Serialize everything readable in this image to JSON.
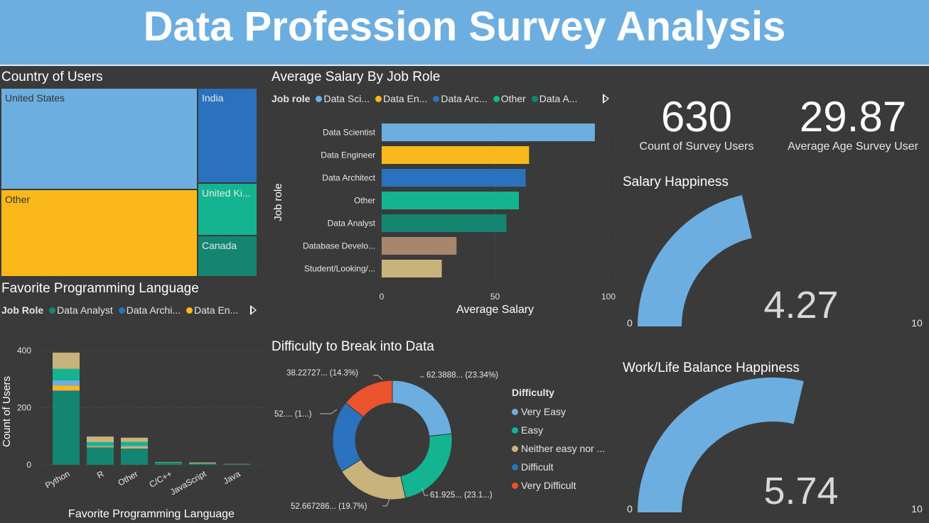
{
  "title": "Data Profession Survey Analysis",
  "colors": {
    "background": "#3a3a3a",
    "header": "#6caee0",
    "light_blue": "#6caee0",
    "yellow": "#fbb81b",
    "blue": "#2a72bd",
    "teal": "#14b391",
    "dark_teal": "#138571",
    "tan": "#a6876b",
    "khaki": "#c8b37d",
    "orange_red": "#ea532d"
  },
  "country_treemap": {
    "title": "Country of Users",
    "cells": [
      {
        "label": "United States",
        "color": "#6caee0"
      },
      {
        "label": "Other",
        "color": "#fbb81b"
      },
      {
        "label": "India",
        "color": "#2a72bd"
      },
      {
        "label": "United Ki...",
        "color": "#14b391"
      },
      {
        "label": "Canada",
        "color": "#138571"
      }
    ]
  },
  "salary_panel": {
    "title": "Average Salary By Job Role",
    "legend_title": "Job role",
    "legend_items": [
      {
        "label": "Data Sci...",
        "color": "#6caee0"
      },
      {
        "label": "Data En...",
        "color": "#fbb81b"
      },
      {
        "label": "Data Arc...",
        "color": "#2a72bd"
      },
      {
        "label": "Other",
        "color": "#14b391"
      },
      {
        "label": "Data A...",
        "color": "#138571"
      }
    ]
  },
  "language_panel": {
    "title": "Favorite Programming Language",
    "legend_title": "Job Role",
    "legend_items": [
      {
        "label": "Data Analyst",
        "color": "#138571"
      },
      {
        "label": "Data Archi...",
        "color": "#2a72bd"
      },
      {
        "label": "Data En...",
        "color": "#fbb81b"
      }
    ]
  },
  "difficulty_panel": {
    "title": "Difficulty to Break into Data",
    "legend_title": "Difficulty",
    "legend_items": [
      {
        "label": "Very Easy",
        "color": "#6caee0"
      },
      {
        "label": "Easy",
        "color": "#14b391"
      },
      {
        "label": "Neither easy nor ...",
        "color": "#c8b37d"
      },
      {
        "label": "Difficult",
        "color": "#2a72bd"
      },
      {
        "label": "Very Difficult",
        "color": "#ea532d"
      }
    ]
  },
  "kpis": {
    "count": {
      "value": "630",
      "label": "Count of Survey Users"
    },
    "age": {
      "value": "29.87",
      "label": "Average Age Survey User"
    }
  },
  "chart_data": [
    {
      "type": "bar",
      "orientation": "horizontal",
      "title": "Average Salary By Job Role",
      "xlabel": "Average Salary",
      "ylabel": "Job role",
      "categories": [
        "Data Scientist",
        "Data Engineer",
        "Data Architect",
        "Other",
        "Data Analyst",
        "Database Develo...",
        "Student/Looking/..."
      ],
      "values": [
        94,
        65,
        63.5,
        60.5,
        55,
        33,
        26.5
      ],
      "colors": [
        "#6caee0",
        "#fbb81b",
        "#2a72bd",
        "#14b391",
        "#138571",
        "#a6876b",
        "#c8b37d"
      ],
      "xlim": [
        0,
        100
      ],
      "xticks": [
        "0",
        "50",
        "100"
      ]
    },
    {
      "type": "bar",
      "stacked": true,
      "title": "Favorite Programming Language",
      "xlabel": "Favorite Programming Language",
      "ylabel": "Count of Users",
      "categories": [
        "Python",
        "R",
        "Other",
        "C/C++",
        "JavaScript",
        "Java"
      ],
      "ylim": [
        0,
        430
      ],
      "yticks": [
        "0",
        "200",
        "400"
      ],
      "series": [
        {
          "name": "Data Analyst",
          "color": "#138571",
          "values": [
            257,
            60,
            56,
            7,
            4,
            2
          ]
        },
        {
          "name": "Data Archi...",
          "color": "#2a72bd",
          "values": [
            3,
            1,
            1,
            0,
            0,
            0
          ]
        },
        {
          "name": "Data En...",
          "color": "#fbb81b",
          "values": [
            18,
            3,
            5,
            0,
            0,
            0
          ]
        },
        {
          "series_color_only": true,
          "color": "#6caee0",
          "values": [
            18,
            3,
            6,
            0,
            0,
            0
          ]
        },
        {
          "series_color_only": true,
          "color": "#14b391",
          "values": [
            40,
            12,
            12,
            2,
            1,
            0
          ]
        },
        {
          "series_color_only": true,
          "color": "#c8b37d",
          "values": [
            57,
            20,
            15,
            1,
            3,
            1
          ]
        }
      ]
    },
    {
      "type": "pie",
      "donut": true,
      "title": "Difficulty to Break into Data",
      "legend_title": "Difficulty",
      "slices": [
        {
          "name": "Very Easy",
          "percent": 23.34,
          "color": "#6caee0",
          "label": "62.3888... (23.34%)"
        },
        {
          "name": "Easy",
          "percent": 23.1,
          "color": "#14b391",
          "label": "61.925... (23.1...)"
        },
        {
          "name": "Neither easy nor ...",
          "percent": 19.7,
          "color": "#c8b37d",
          "label": "52.667286... (19.7%)"
        },
        {
          "name": "Difficult",
          "percent": 19.56,
          "color": "#2a72bd",
          "label": "52.... (1...)"
        },
        {
          "name": "Very Difficult",
          "percent": 14.3,
          "color": "#ea532d",
          "label": "38.22727... (14.3%)"
        }
      ]
    },
    {
      "type": "gauge",
      "title": "Salary Happiness",
      "value": 4.27,
      "value_label": "4.27",
      "min": 0,
      "max": 10,
      "min_label": "0",
      "max_label": "10",
      "color": "#6caee0"
    },
    {
      "type": "gauge",
      "title": "Work/Life Balance Happiness",
      "value": 5.74,
      "value_label": "5.74",
      "min": 0,
      "max": 10,
      "min_label": "0",
      "max_label": "10",
      "color": "#6caee0"
    }
  ]
}
